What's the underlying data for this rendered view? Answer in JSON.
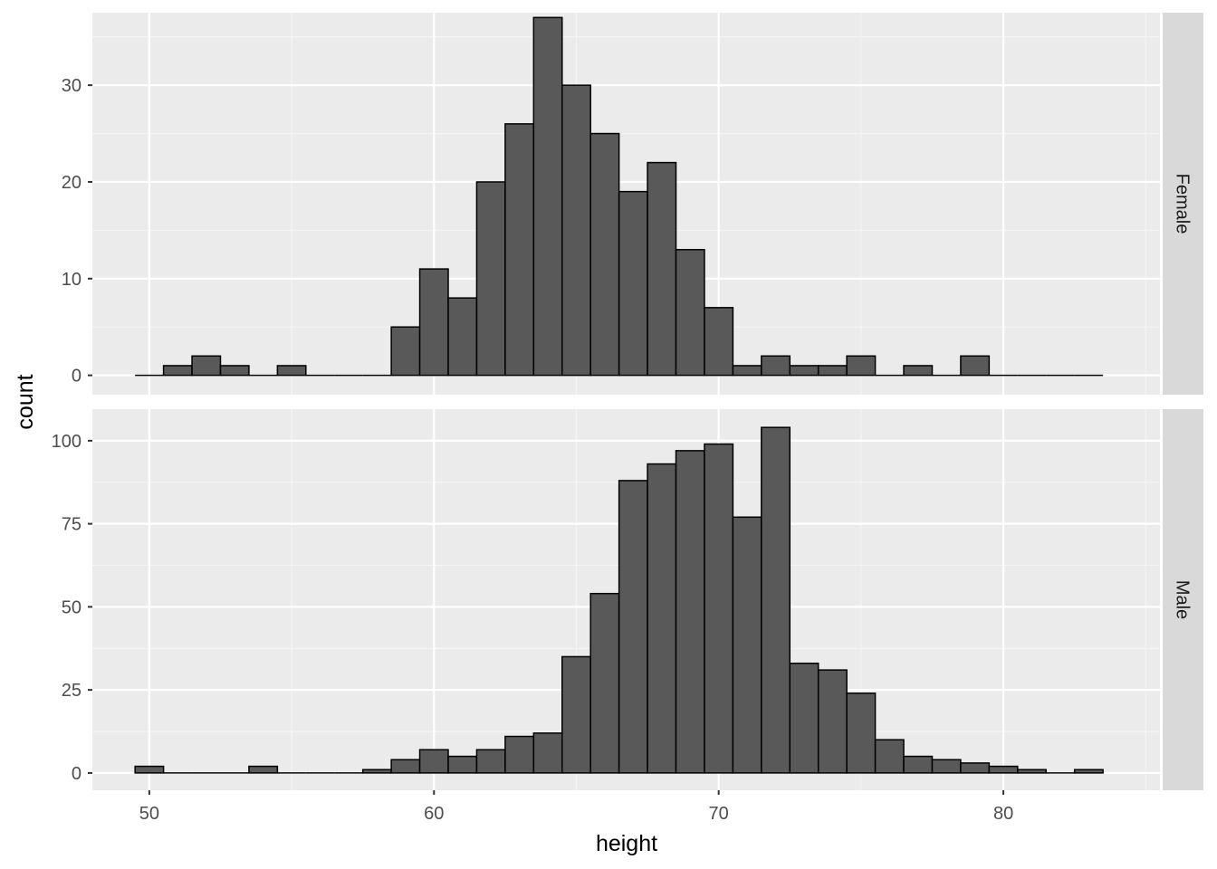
{
  "chart_data": {
    "type": "bar",
    "subtype": "faceted histogram",
    "facet_direction": "rows",
    "xlabel": "height",
    "ylabel": "count",
    "xlim": [
      48,
      85.5
    ],
    "x_ticks": [
      50,
      60,
      70,
      80
    ],
    "bin_width": 1,
    "grid": true,
    "legend": "none",
    "colors": {
      "panel_background": "#ebebeb",
      "grid_major": "#ffffff",
      "grid_minor": "#f5f5f5",
      "bar_fill": "#595959",
      "bar_outline": "#000000",
      "strip_background": "#d9d9d9",
      "strip_text": "#1a1a1a",
      "tick_text": "#4d4d4d"
    },
    "panels": [
      {
        "strip": "Female",
        "ylim": [
          -2,
          37.5
        ],
        "y_ticks": [
          0,
          10,
          20,
          30
        ],
        "bins": [
          {
            "x": 50,
            "count": 0
          },
          {
            "x": 51,
            "count": 1
          },
          {
            "x": 52,
            "count": 2
          },
          {
            "x": 53,
            "count": 1
          },
          {
            "x": 54,
            "count": 0
          },
          {
            "x": 55,
            "count": 1
          },
          {
            "x": 56,
            "count": 0
          },
          {
            "x": 57,
            "count": 0
          },
          {
            "x": 58,
            "count": 0
          },
          {
            "x": 59,
            "count": 5
          },
          {
            "x": 60,
            "count": 11
          },
          {
            "x": 61,
            "count": 8
          },
          {
            "x": 62,
            "count": 20
          },
          {
            "x": 63,
            "count": 26
          },
          {
            "x": 64,
            "count": 37
          },
          {
            "x": 65,
            "count": 30
          },
          {
            "x": 66,
            "count": 25
          },
          {
            "x": 67,
            "count": 19
          },
          {
            "x": 68,
            "count": 22
          },
          {
            "x": 69,
            "count": 13
          },
          {
            "x": 70,
            "count": 7
          },
          {
            "x": 71,
            "count": 1
          },
          {
            "x": 72,
            "count": 2
          },
          {
            "x": 73,
            "count": 1
          },
          {
            "x": 74,
            "count": 1
          },
          {
            "x": 75,
            "count": 2
          },
          {
            "x": 76,
            "count": 0
          },
          {
            "x": 77,
            "count": 1
          },
          {
            "x": 78,
            "count": 0
          },
          {
            "x": 79,
            "count": 2
          },
          {
            "x": 80,
            "count": 0
          },
          {
            "x": 81,
            "count": 0
          },
          {
            "x": 82,
            "count": 0
          },
          {
            "x": 83,
            "count": 0
          }
        ]
      },
      {
        "strip": "Male",
        "ylim": [
          -5.2,
          109.5
        ],
        "y_ticks": [
          0,
          25,
          50,
          75,
          100
        ],
        "bins": [
          {
            "x": 50,
            "count": 2
          },
          {
            "x": 51,
            "count": 0
          },
          {
            "x": 52,
            "count": 0
          },
          {
            "x": 53,
            "count": 0
          },
          {
            "x": 54,
            "count": 2
          },
          {
            "x": 55,
            "count": 0
          },
          {
            "x": 56,
            "count": 0
          },
          {
            "x": 57,
            "count": 0
          },
          {
            "x": 58,
            "count": 1
          },
          {
            "x": 59,
            "count": 4
          },
          {
            "x": 60,
            "count": 7
          },
          {
            "x": 61,
            "count": 5
          },
          {
            "x": 62,
            "count": 7
          },
          {
            "x": 63,
            "count": 11
          },
          {
            "x": 64,
            "count": 12
          },
          {
            "x": 65,
            "count": 35
          },
          {
            "x": 66,
            "count": 54
          },
          {
            "x": 67,
            "count": 88
          },
          {
            "x": 68,
            "count": 93
          },
          {
            "x": 69,
            "count": 97
          },
          {
            "x": 70,
            "count": 99
          },
          {
            "x": 71,
            "count": 77
          },
          {
            "x": 72,
            "count": 104
          },
          {
            "x": 73,
            "count": 33
          },
          {
            "x": 74,
            "count": 31
          },
          {
            "x": 75,
            "count": 24
          },
          {
            "x": 76,
            "count": 10
          },
          {
            "x": 77,
            "count": 5
          },
          {
            "x": 78,
            "count": 4
          },
          {
            "x": 79,
            "count": 3
          },
          {
            "x": 80,
            "count": 2
          },
          {
            "x": 81,
            "count": 1
          },
          {
            "x": 82,
            "count": 0
          },
          {
            "x": 83,
            "count": 1
          }
        ]
      }
    ]
  }
}
